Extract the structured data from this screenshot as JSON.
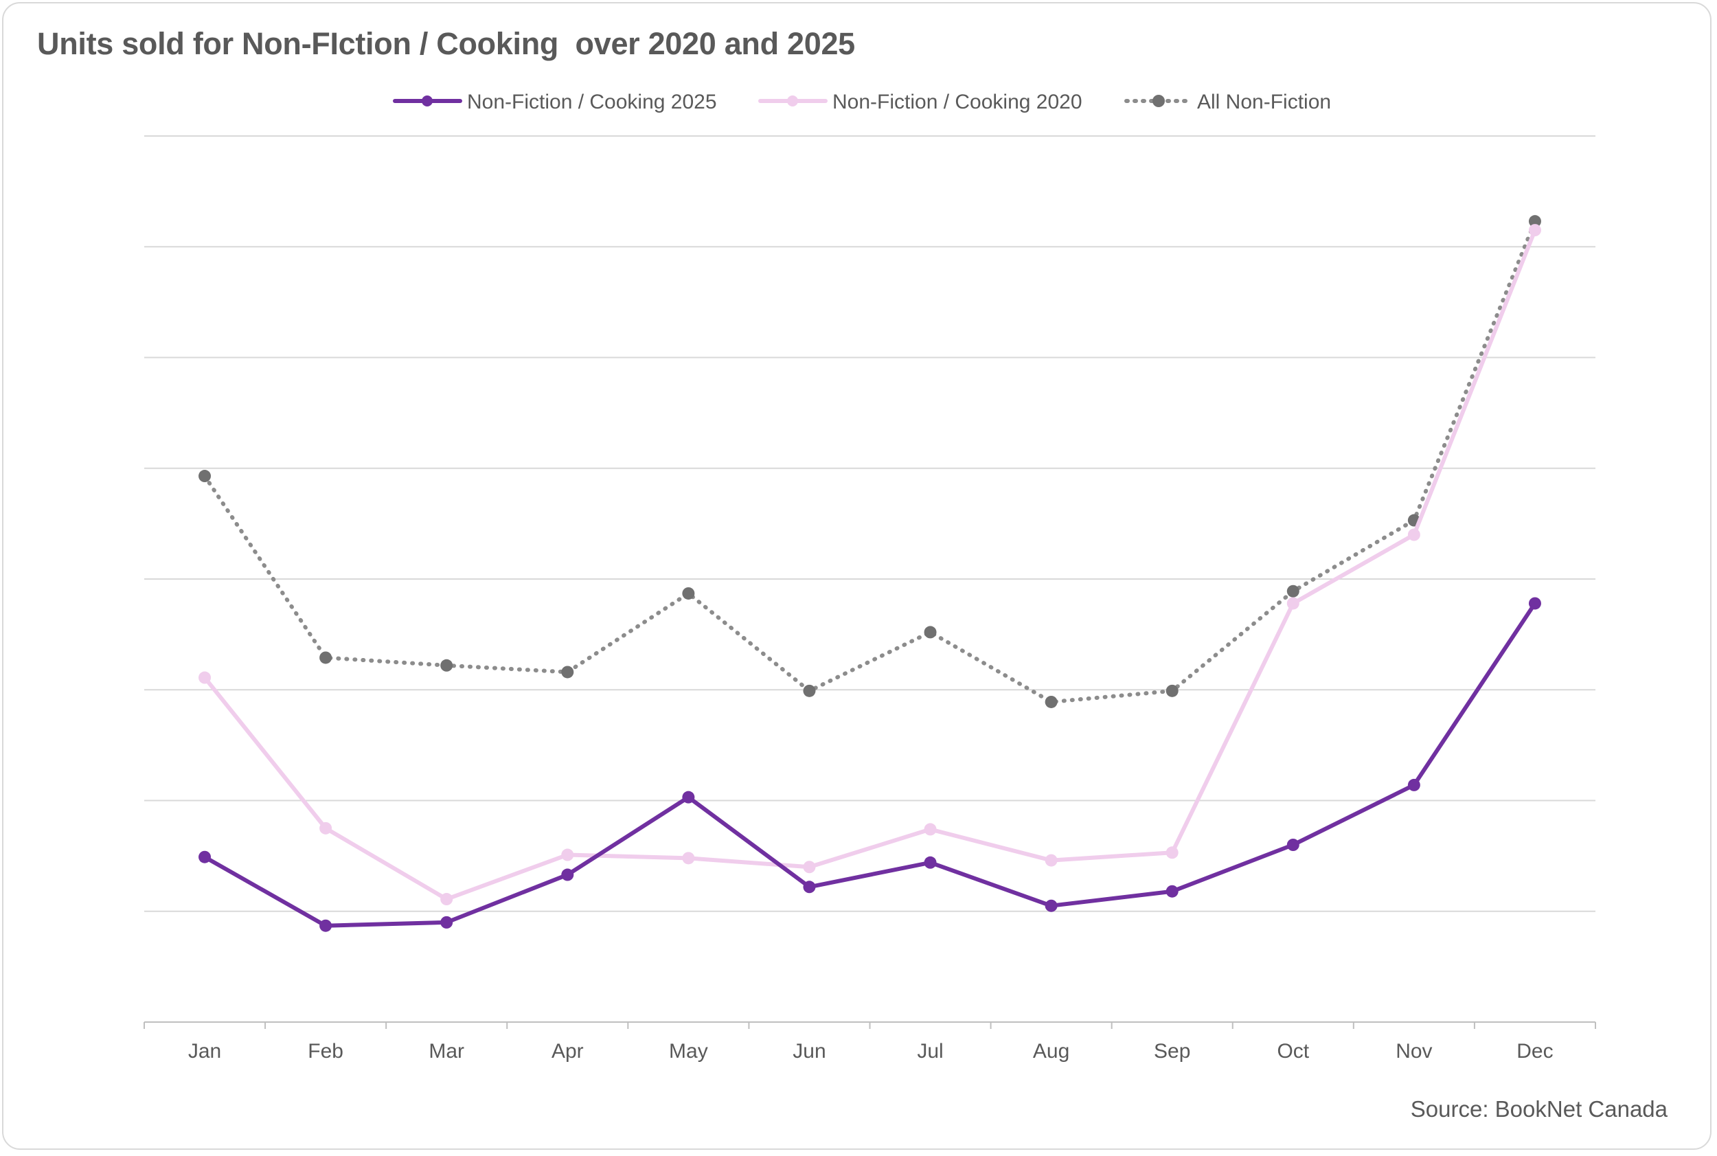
{
  "source": "Source: BookNet Canada",
  "colors": {
    "series_2025": "#7030a0",
    "series_2020": "#f0cdec",
    "all": "#8c8c8c",
    "all_marker": "#707070",
    "grid": "#d9d9d9",
    "text": "#595959"
  },
  "chart_data": {
    "type": "line",
    "title": "Units sold for Non-FIction / Cooking  over 2020 and 2025",
    "xlabel": "",
    "ylabel": "",
    "categories": [
      "Jan",
      "Feb",
      "Mar",
      "Apr",
      "May",
      "Jun",
      "Jul",
      "Aug",
      "Sep",
      "Oct",
      "Nov",
      "Dec"
    ],
    "y_tick_labels_shown": false,
    "ylim": [
      0,
      8
    ],
    "grid": true,
    "legend_position": "top",
    "series": [
      {
        "name": "Non-Fiction / Cooking 2025",
        "style": "solid",
        "color": "#7030a0",
        "values": [
          1.49,
          0.87,
          0.9,
          1.33,
          2.03,
          1.22,
          1.44,
          1.05,
          1.18,
          1.6,
          2.14,
          3.78
        ]
      },
      {
        "name": "Non-Fiction / Cooking 2020",
        "style": "solid",
        "color": "#f0cdec",
        "values": [
          3.11,
          1.75,
          1.11,
          1.51,
          1.48,
          1.4,
          1.74,
          1.46,
          1.53,
          3.78,
          4.4,
          7.15
        ]
      },
      {
        "name": "All Non-Fiction",
        "style": "dotted",
        "color": "#8c8c8c",
        "values": [
          4.93,
          3.29,
          3.22,
          3.16,
          3.87,
          2.99,
          3.52,
          2.89,
          2.99,
          3.89,
          4.53,
          7.23
        ]
      }
    ]
  }
}
